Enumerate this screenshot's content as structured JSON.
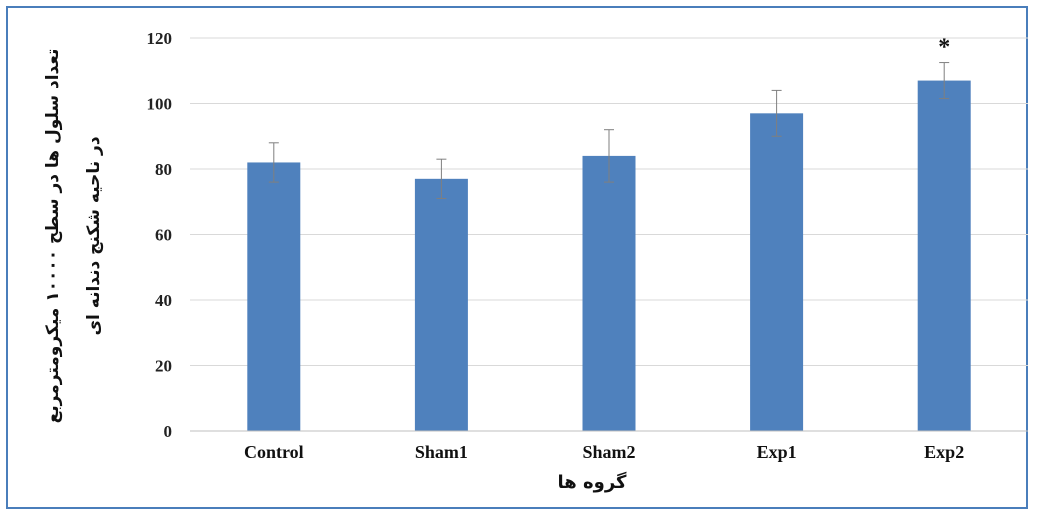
{
  "chart_data": {
    "type": "bar",
    "categories": [
      "Control",
      "Sham1",
      "Sham2",
      "Exp1",
      "Exp2"
    ],
    "values": [
      82,
      77,
      84,
      97,
      107
    ],
    "errors": [
      6,
      6,
      8,
      7,
      5.5
    ],
    "annotations": [
      "",
      "",
      "",
      "",
      "*"
    ],
    "xlabel": "گروه ها",
    "ylabel_line1": "تعداد سلول ها در سطح ۱۰۰۰۰ میکرومترمربع",
    "ylabel_line2": "در ناحیه شکنج دندانه ای",
    "ylim": [
      0,
      120
    ],
    "yticks": [
      "0",
      "20",
      "40",
      "60",
      "80",
      "100",
      "120"
    ],
    "bar_color": "#4f81bd",
    "grid": true
  }
}
